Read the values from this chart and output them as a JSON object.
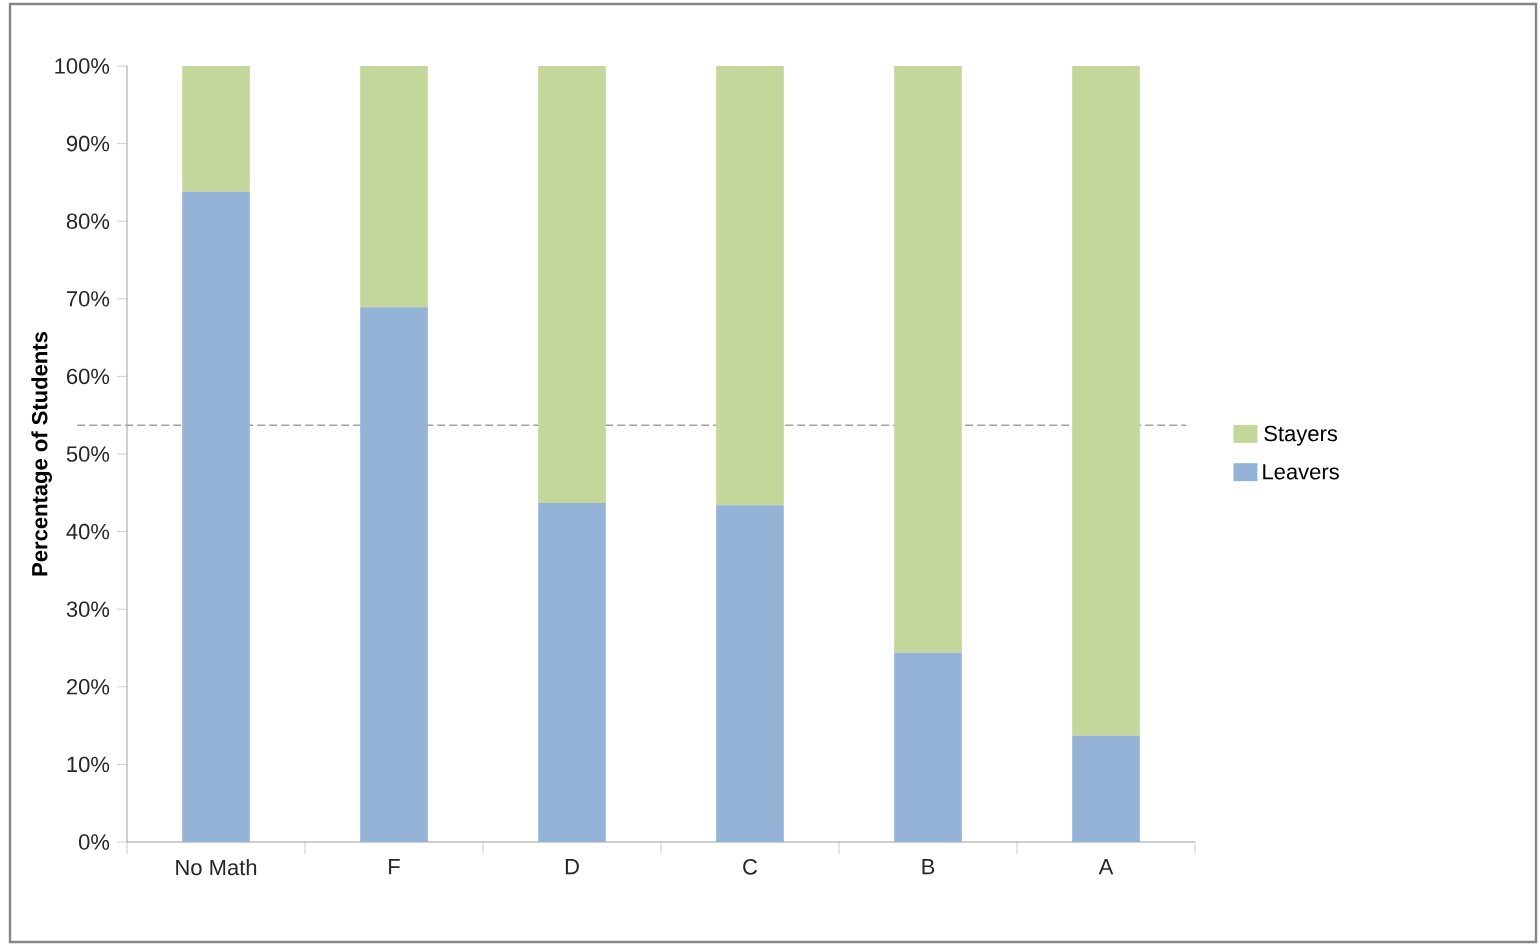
{
  "chart_data": {
    "type": "bar",
    "stacked": true,
    "ylabel": "Percentage of Students",
    "categories": [
      "No Math",
      "F",
      "D",
      "C",
      "B",
      "A"
    ],
    "series": [
      {
        "name": "Leavers",
        "color": "#95b3d7",
        "values": [
          83.8,
          68.9,
          43.7,
          43.4,
          24.4,
          13.7
        ]
      },
      {
        "name": "Stayers",
        "color": "#c4d79b",
        "values": [
          16.2,
          31.1,
          56.3,
          56.6,
          75.6,
          86.3
        ]
      }
    ],
    "ylim": [
      0,
      100
    ],
    "yticks": [
      {
        "value": 0,
        "label": "0%"
      },
      {
        "value": 10,
        "label": "10%"
      },
      {
        "value": 20,
        "label": "20%"
      },
      {
        "value": 30,
        "label": "30%"
      },
      {
        "value": 40,
        "label": "40%"
      },
      {
        "value": 50,
        "label": "50%"
      },
      {
        "value": 60,
        "label": "60%"
      },
      {
        "value": 70,
        "label": "70%"
      },
      {
        "value": 80,
        "label": "80%"
      },
      {
        "value": 90,
        "label": "90%"
      },
      {
        "value": 100,
        "label": "100%"
      }
    ],
    "ref_lines": [
      {
        "axis": "y",
        "value": 53.7,
        "color": "#a0a0a0",
        "line_style": "dashed"
      }
    ],
    "legend": "right",
    "grid": false
  }
}
